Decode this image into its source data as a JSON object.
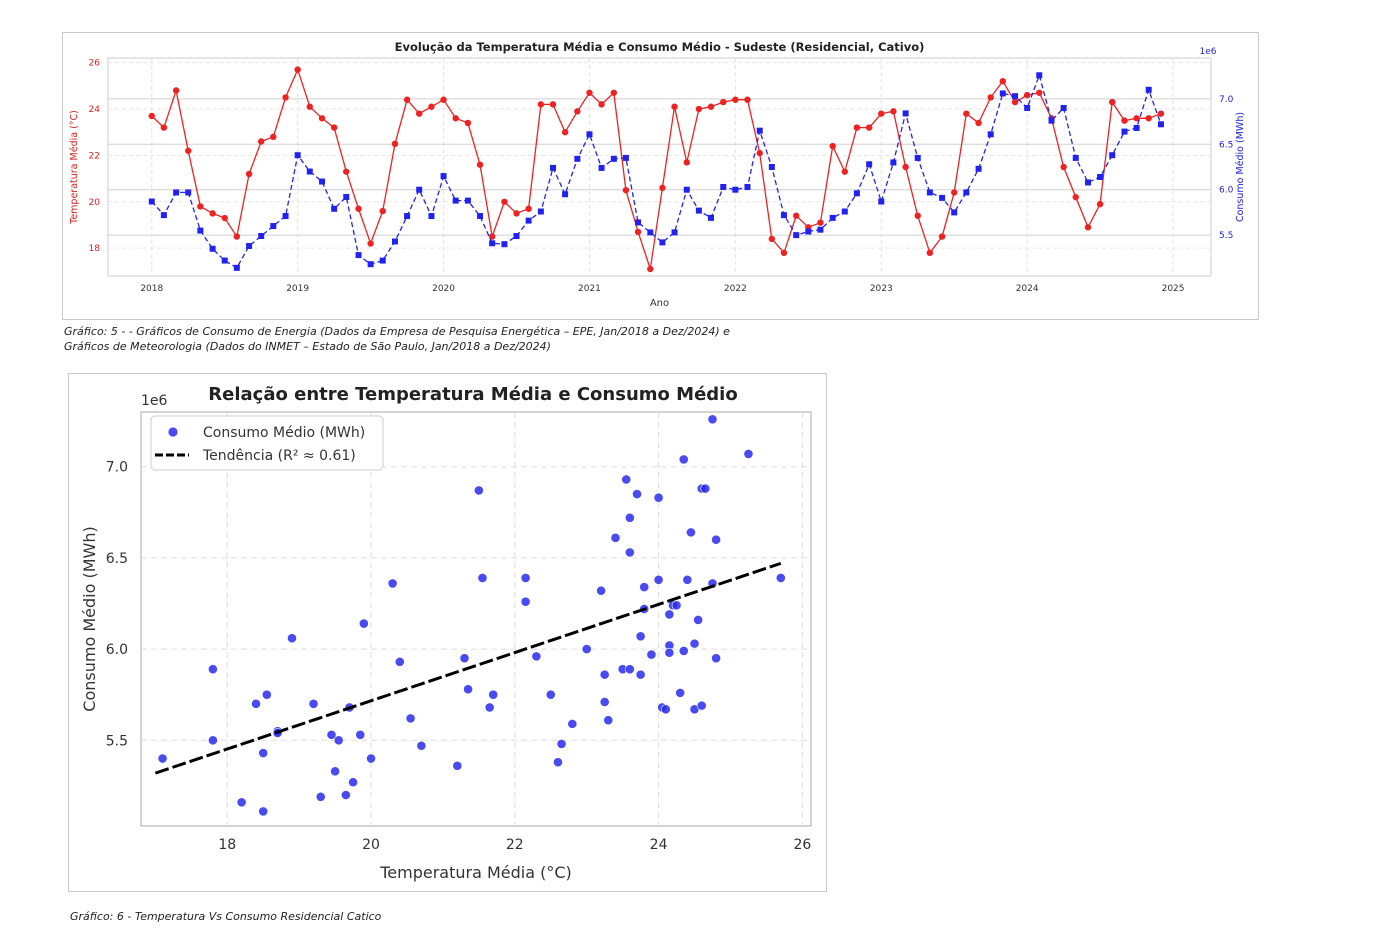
{
  "chart_data": [
    {
      "type": "line",
      "title": "Evolução da Temperatura Média e Consumo Médio - Sudeste (Residencial, Cativo)",
      "xlabel": "Ano",
      "ylabel_left": "Temperatura Média (°C)",
      "ylabel_right": "Consumo Médio (MWh)",
      "right_offset_label": "1e6",
      "x_ticks": [
        "2018",
        "2019",
        "2020",
        "2021",
        "2022",
        "2023",
        "2024",
        "2025"
      ],
      "y_left_ticks": [
        "18",
        "20",
        "22",
        "24",
        "26"
      ],
      "y_right_ticks": [
        "5.5",
        "6.0",
        "6.5",
        "7.0"
      ],
      "xlim": [
        2017.7,
        2025.26
      ],
      "ylim_left": [
        16.8,
        26.2
      ],
      "ylim_right": [
        5.05,
        7.45
      ],
      "grid": true,
      "x": [
        2018.0,
        2018.083,
        2018.167,
        2018.25,
        2018.333,
        2018.417,
        2018.5,
        2018.583,
        2018.667,
        2018.75,
        2018.833,
        2018.917,
        2019.0,
        2019.083,
        2019.167,
        2019.25,
        2019.333,
        2019.417,
        2019.5,
        2019.583,
        2019.667,
        2019.75,
        2019.833,
        2019.917,
        2020.0,
        2020.083,
        2020.167,
        2020.25,
        2020.333,
        2020.417,
        2020.5,
        2020.583,
        2020.667,
        2020.75,
        2020.833,
        2020.917,
        2021.0,
        2021.083,
        2021.167,
        2021.25,
        2021.333,
        2021.417,
        2021.5,
        2021.583,
        2021.667,
        2021.75,
        2021.833,
        2021.917,
        2022.0,
        2022.083,
        2022.167,
        2022.25,
        2022.333,
        2022.417,
        2022.5,
        2022.583,
        2022.667,
        2022.75,
        2022.833,
        2022.917,
        2023.0,
        2023.083,
        2023.167,
        2023.25,
        2023.333,
        2023.417,
        2023.5,
        2023.583,
        2023.667,
        2023.75,
        2023.833,
        2023.917,
        2024.0,
        2024.083,
        2024.167,
        2024.25,
        2024.333,
        2024.417,
        2024.5,
        2024.583,
        2024.667,
        2024.75,
        2024.833,
        2024.917
      ],
      "series": [
        {
          "name": "Temperatura Média (°C)",
          "color": "#ee2222",
          "axis": "left",
          "style": "solid",
          "marker": "circle",
          "values": [
            23.7,
            23.2,
            24.8,
            22.2,
            19.8,
            19.5,
            19.3,
            18.5,
            21.2,
            22.6,
            22.8,
            24.5,
            25.7,
            24.1,
            23.6,
            23.2,
            21.3,
            19.7,
            18.2,
            19.6,
            22.5,
            24.4,
            23.8,
            24.1,
            24.4,
            23.6,
            23.4,
            21.6,
            18.5,
            20.0,
            19.5,
            19.7,
            24.2,
            24.2,
            23.0,
            23.9,
            24.7,
            24.2,
            24.7,
            20.5,
            18.7,
            17.1,
            20.6,
            24.1,
            21.7,
            24.0,
            24.1,
            24.3,
            24.4,
            24.4,
            22.1,
            18.4,
            17.8,
            19.4,
            18.9,
            19.1,
            22.4,
            21.3,
            23.2,
            23.2,
            23.8,
            23.9,
            21.5,
            19.4,
            17.8,
            18.5,
            20.4,
            23.8,
            23.4,
            24.5,
            25.2,
            24.3,
            24.6,
            24.7,
            23.6,
            21.5,
            20.2,
            18.9,
            19.9,
            24.3,
            23.5,
            23.6,
            23.6,
            23.8
          ]
        },
        {
          "name": "Consumo Médio (MWh)",
          "color": "#2222ee",
          "axis": "right",
          "style": "dashed",
          "marker": "square",
          "values": [
            5.87,
            5.72,
            5.97,
            5.97,
            5.55,
            5.35,
            5.22,
            5.14,
            5.38,
            5.49,
            5.6,
            5.71,
            6.38,
            6.2,
            6.09,
            5.79,
            5.92,
            5.28,
            5.18,
            5.22,
            5.43,
            5.71,
            6.0,
            5.71,
            6.15,
            5.88,
            5.88,
            5.71,
            5.41,
            5.4,
            5.49,
            5.66,
            5.76,
            6.24,
            5.95,
            6.34,
            6.61,
            6.24,
            6.34,
            6.35,
            5.64,
            5.53,
            5.42,
            5.53,
            6.0,
            5.77,
            5.69,
            6.03,
            6.0,
            6.03,
            6.65,
            6.25,
            5.72,
            5.5,
            5.54,
            5.56,
            5.69,
            5.76,
            5.96,
            6.28,
            5.87,
            6.3,
            6.84,
            6.35,
            5.97,
            5.91,
            5.75,
            5.97,
            6.23,
            6.61,
            7.06,
            7.03,
            6.9,
            7.26,
            6.76,
            6.9,
            6.35,
            6.08,
            6.14,
            6.38,
            6.64,
            6.68,
            7.1,
            6.72
          ]
        }
      ]
    },
    {
      "type": "scatter",
      "title": "Relação entre Temperatura Média e Consumo Médio",
      "xlabel": "Temperatura Média (°C)",
      "ylabel": "Consumo Médio (MWh)",
      "offset_label": "1e6",
      "x_ticks": [
        "18",
        "20",
        "22",
        "24",
        "26"
      ],
      "y_ticks": [
        "5.5",
        "6.0",
        "6.5",
        "7.0"
      ],
      "xlim": [
        16.8,
        26.12
      ],
      "ylim": [
        5.03,
        7.3
      ],
      "grid": true,
      "legend": [
        "Consumo Médio (MWh)",
        "Tendência (R² ≈ 0.61)"
      ],
      "legend_position": "top-left",
      "trend": {
        "x0": 17.0,
        "y0": 5.32,
        "x1": 25.7,
        "y1": 6.47
      },
      "points": [
        [
          17.1,
          5.4
        ],
        [
          17.8,
          5.89
        ],
        [
          17.8,
          5.5
        ],
        [
          18.2,
          5.16
        ],
        [
          18.4,
          5.7
        ],
        [
          18.5,
          5.43
        ],
        [
          18.55,
          5.75
        ],
        [
          18.5,
          5.11
        ],
        [
          18.7,
          5.55
        ],
        [
          18.7,
          5.54
        ],
        [
          18.9,
          6.06
        ],
        [
          19.2,
          5.7
        ],
        [
          19.3,
          5.19
        ],
        [
          19.45,
          5.53
        ],
        [
          19.5,
          5.33
        ],
        [
          19.55,
          5.5
        ],
        [
          19.65,
          5.2
        ],
        [
          19.7,
          5.68
        ],
        [
          19.75,
          5.27
        ],
        [
          19.85,
          5.53
        ],
        [
          19.9,
          6.14
        ],
        [
          20.0,
          5.4
        ],
        [
          20.3,
          6.36
        ],
        [
          20.4,
          5.93
        ],
        [
          20.55,
          5.62
        ],
        [
          20.7,
          5.47
        ],
        [
          21.2,
          5.36
        ],
        [
          21.3,
          5.95
        ],
        [
          21.35,
          5.78
        ],
        [
          21.5,
          6.87
        ],
        [
          21.55,
          6.39
        ],
        [
          21.65,
          5.68
        ],
        [
          21.7,
          5.75
        ],
        [
          22.15,
          6.26
        ],
        [
          22.15,
          6.39
        ],
        [
          22.3,
          5.96
        ],
        [
          22.5,
          5.75
        ],
        [
          22.6,
          5.38
        ],
        [
          22.65,
          5.48
        ],
        [
          22.8,
          5.59
        ],
        [
          23.0,
          6.0
        ],
        [
          23.2,
          6.32
        ],
        [
          23.25,
          5.86
        ],
        [
          23.25,
          5.71
        ],
        [
          23.3,
          5.61
        ],
        [
          23.4,
          6.61
        ],
        [
          23.5,
          5.89
        ],
        [
          23.55,
          6.93
        ],
        [
          23.6,
          6.53
        ],
        [
          23.6,
          6.72
        ],
        [
          23.6,
          5.89
        ],
        [
          23.7,
          6.85
        ],
        [
          23.75,
          6.07
        ],
        [
          23.75,
          5.86
        ],
        [
          23.8,
          6.22
        ],
        [
          23.8,
          6.34
        ],
        [
          23.9,
          5.97
        ],
        [
          24.0,
          6.83
        ],
        [
          24.0,
          6.38
        ],
        [
          24.05,
          5.68
        ],
        [
          24.1,
          5.67
        ],
        [
          24.15,
          6.19
        ],
        [
          24.15,
          6.02
        ],
        [
          24.15,
          5.98
        ],
        [
          24.2,
          6.24
        ],
        [
          24.25,
          6.24
        ],
        [
          24.3,
          5.76
        ],
        [
          24.35,
          5.99
        ],
        [
          24.35,
          7.04
        ],
        [
          24.4,
          6.38
        ],
        [
          24.45,
          6.64
        ],
        [
          24.5,
          5.67
        ],
        [
          24.5,
          6.03
        ],
        [
          24.55,
          6.16
        ],
        [
          24.6,
          6.88
        ],
        [
          24.65,
          6.88
        ],
        [
          24.6,
          5.69
        ],
        [
          24.75,
          7.26
        ],
        [
          24.75,
          6.36
        ],
        [
          24.8,
          6.6
        ],
        [
          24.8,
          5.95
        ],
        [
          25.25,
          7.07
        ],
        [
          25.7,
          6.39
        ]
      ]
    }
  ],
  "captions": {
    "fig5_line1": "Gráfico:  5 - - Gráficos de Consumo de Energia (Dados da Empresa de Pesquisa Energética – EPE, Jan/2018 a Dez/2024) e",
    "fig5_line2": " Gráficos de Meteorologia (Dados do INMET – Estado de São Paulo, Jan/2018 a Dez/2024)",
    "fig6": "Gráfico:  6 - Temperatura Vs Consumo Residencial Catico"
  }
}
